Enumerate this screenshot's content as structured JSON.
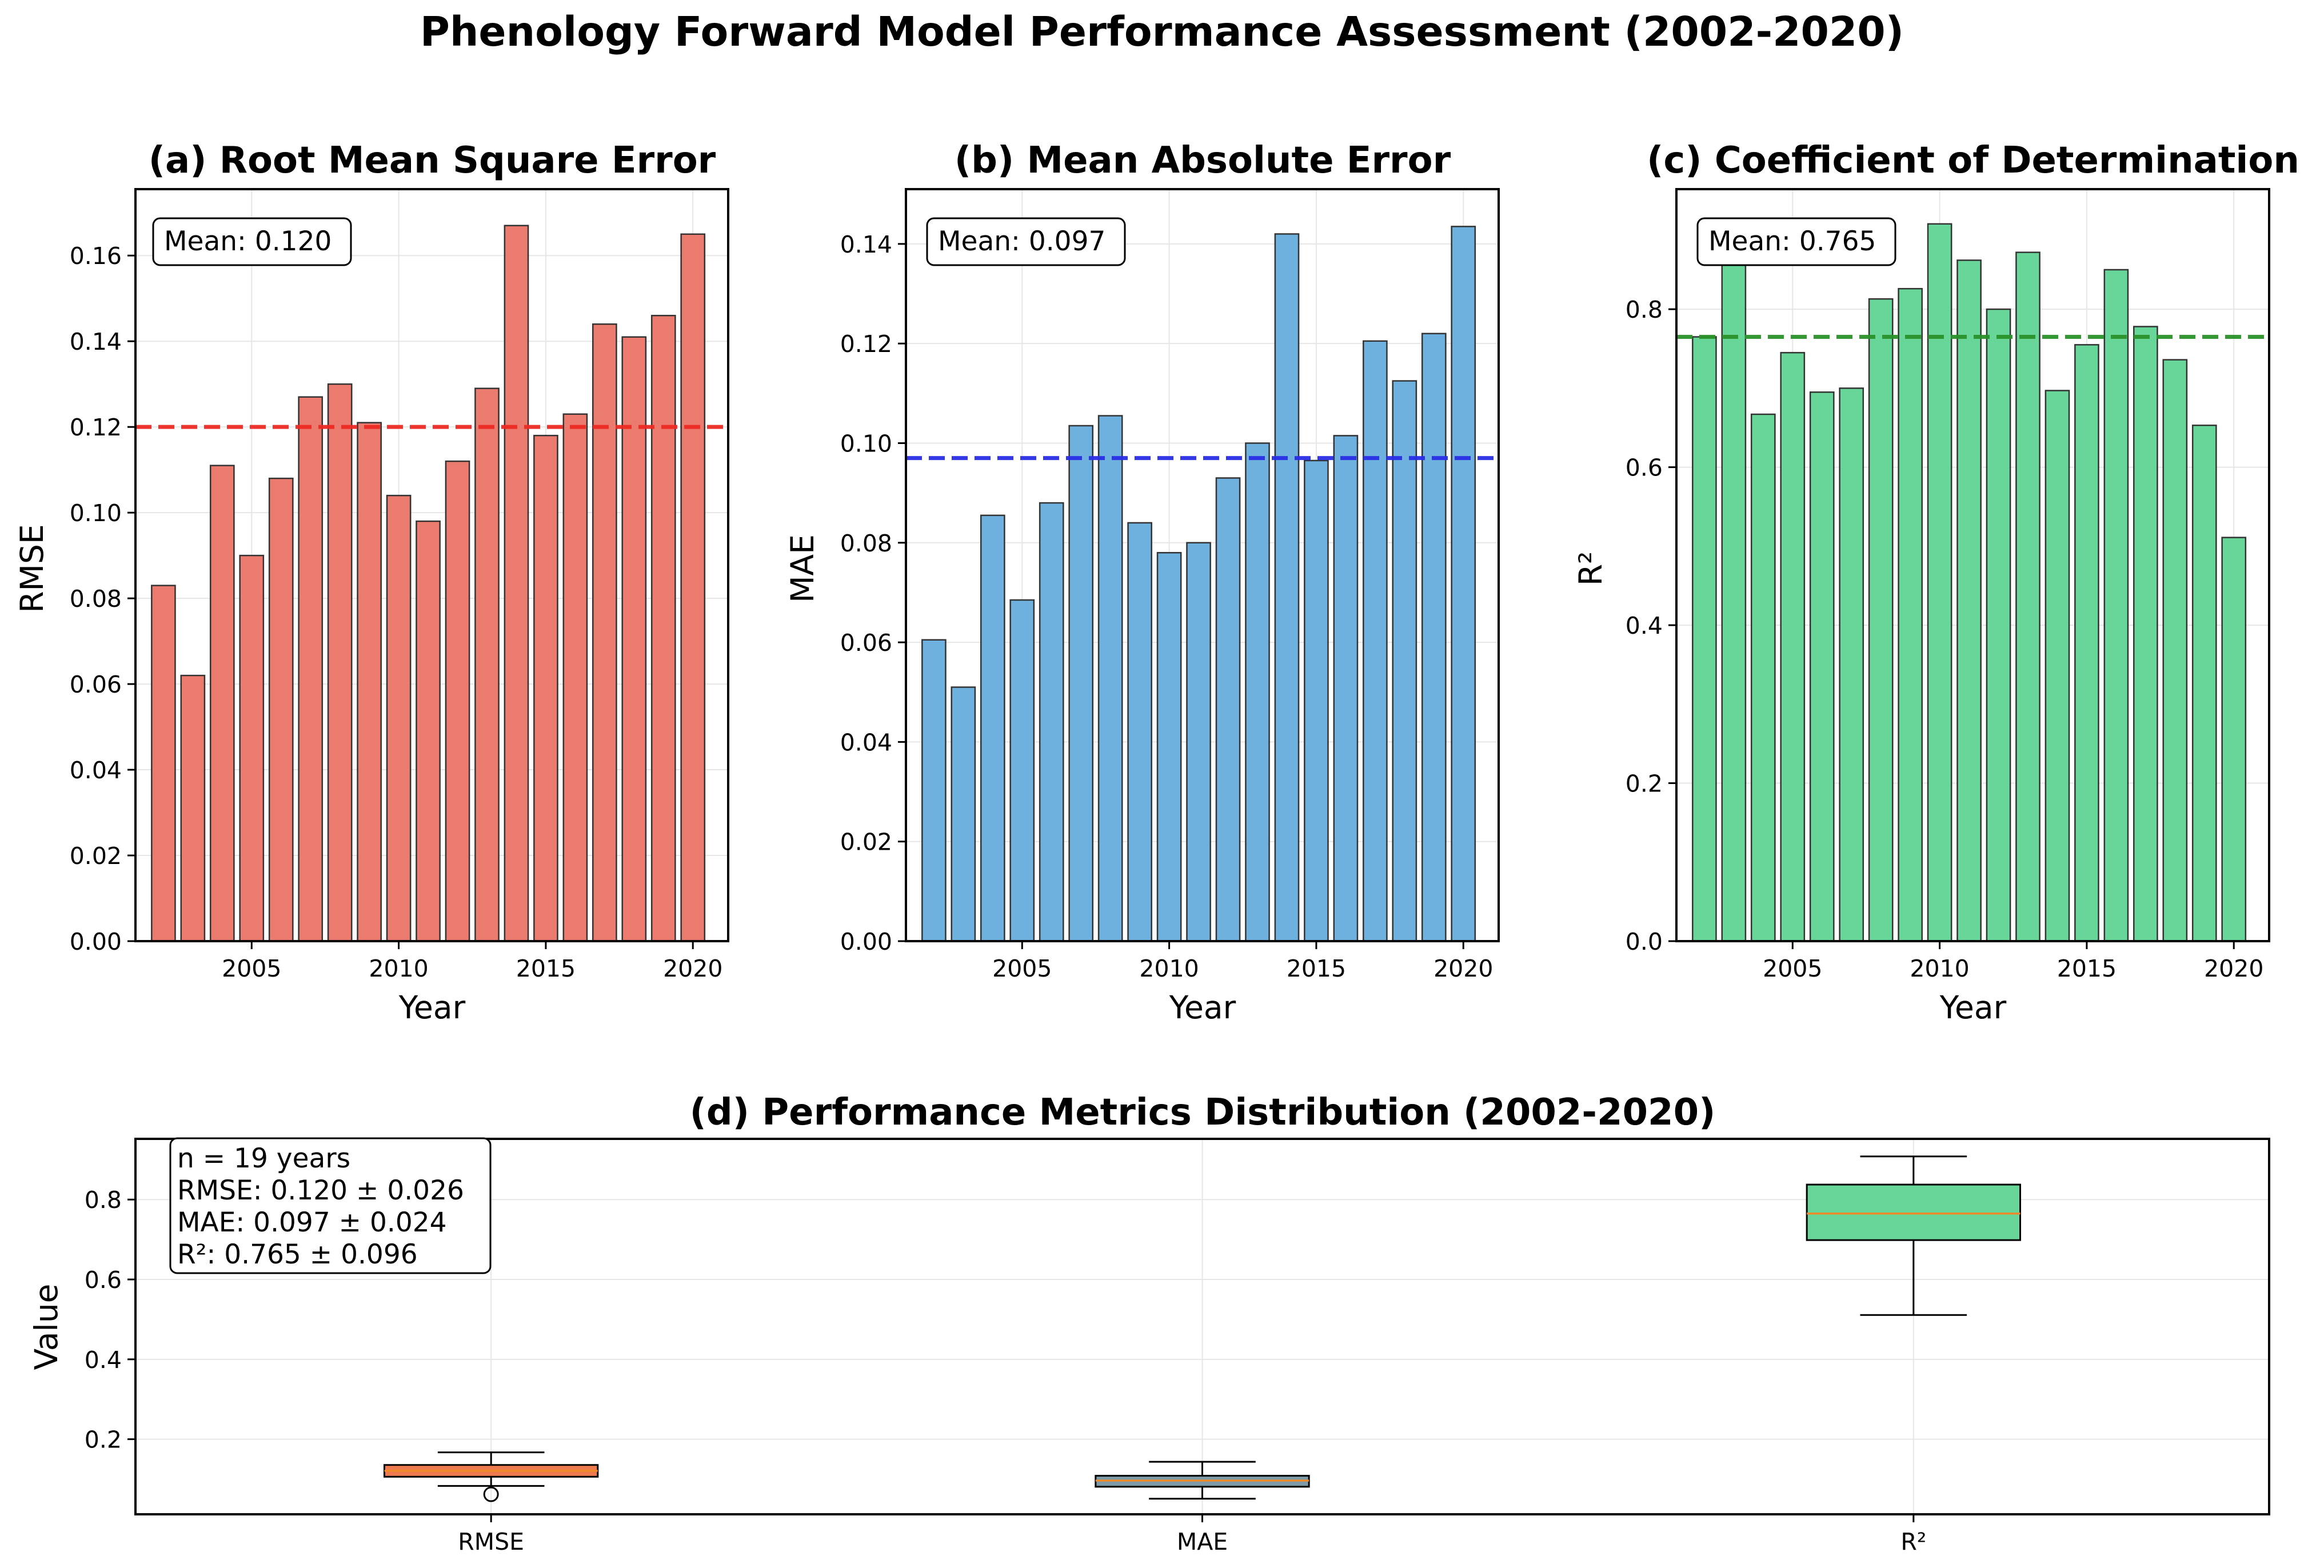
{
  "figure_title": "Phenology Forward Model Performance Assessment (2002-2020)",
  "colors": {
    "rmse_bar": "#ec7b6f",
    "mae_bar": "#6eb1df",
    "r2_bar": "#69d699",
    "rmse_mean_line": "#ee2a24",
    "mae_mean_line": "#2a2ee6",
    "r2_mean_line": "#2a922a",
    "rmse_box": "#ee7a50",
    "mae_box": "#7c9aa8",
    "r2_box": "#69d699",
    "median_line": "#f08a28"
  },
  "chart_data": [
    {
      "type": "bar",
      "panel": "a",
      "title": "(a) Root Mean Square Error",
      "xlabel": "Year",
      "ylabel": "RMSE",
      "x": [
        2002,
        2003,
        2004,
        2005,
        2006,
        2007,
        2008,
        2009,
        2010,
        2011,
        2012,
        2013,
        2014,
        2015,
        2016,
        2017,
        2018,
        2019,
        2020
      ],
      "values": [
        0.083,
        0.062,
        0.111,
        0.09,
        0.108,
        0.127,
        0.13,
        0.121,
        0.104,
        0.098,
        0.112,
        0.129,
        0.167,
        0.118,
        0.123,
        0.144,
        0.141,
        0.146,
        0.165
      ],
      "mean_line": 0.12,
      "annotation": "Mean: 0.120",
      "xlim": [
        2001.05,
        2021.2
      ],
      "ylim": [
        0,
        0.1755
      ],
      "xticks": [
        2005,
        2010,
        2015,
        2020
      ],
      "xtick_labels": [
        "2005",
        "2010",
        "2015",
        "2020"
      ],
      "yticks": [
        0,
        0.02,
        0.04,
        0.06,
        0.08,
        0.1,
        0.12,
        0.14,
        0.16
      ],
      "ytick_labels": [
        "0.00",
        "0.02",
        "0.04",
        "0.06",
        "0.08",
        "0.10",
        "0.12",
        "0.14",
        "0.16"
      ],
      "grid": true
    },
    {
      "type": "bar",
      "panel": "b",
      "title": "(b) Mean Absolute Error",
      "xlabel": "Year",
      "ylabel": "MAE",
      "x": [
        2002,
        2003,
        2004,
        2005,
        2006,
        2007,
        2008,
        2009,
        2010,
        2011,
        2012,
        2013,
        2014,
        2015,
        2016,
        2017,
        2018,
        2019,
        2020
      ],
      "values": [
        0.0605,
        0.051,
        0.0855,
        0.0685,
        0.088,
        0.1035,
        0.1055,
        0.084,
        0.078,
        0.08,
        0.093,
        0.1,
        0.142,
        0.0965,
        0.1015,
        0.1205,
        0.1125,
        0.122,
        0.1435
      ],
      "mean_line": 0.097,
      "annotation": "Mean: 0.097",
      "xlim": [
        2001.05,
        2021.2
      ],
      "ylim": [
        0,
        0.151
      ],
      "xticks": [
        2005,
        2010,
        2015,
        2020
      ],
      "xtick_labels": [
        "2005",
        "2010",
        "2015",
        "2020"
      ],
      "yticks": [
        0,
        0.02,
        0.04,
        0.06,
        0.08,
        0.1,
        0.12,
        0.14
      ],
      "ytick_labels": [
        "0.00",
        "0.02",
        "0.04",
        "0.06",
        "0.08",
        "0.10",
        "0.12",
        "0.14"
      ],
      "grid": true
    },
    {
      "type": "bar",
      "panel": "c",
      "title": "(c) Coefficient of Determination",
      "xlabel": "Year",
      "ylabel": "R²",
      "x": [
        2002,
        2003,
        2004,
        2005,
        2006,
        2007,
        2008,
        2009,
        2010,
        2011,
        2012,
        2013,
        2014,
        2015,
        2016,
        2017,
        2018,
        2019,
        2020
      ],
      "values": [
        0.765,
        0.9,
        0.667,
        0.745,
        0.695,
        0.7,
        0.813,
        0.826,
        0.908,
        0.862,
        0.8,
        0.872,
        0.697,
        0.755,
        0.85,
        0.778,
        0.736,
        0.653,
        0.511
      ],
      "mean_line": 0.765,
      "annotation": "Mean: 0.765",
      "xlim": [
        2001.05,
        2021.2
      ],
      "ylim": [
        0,
        0.952
      ],
      "xticks": [
        2005,
        2010,
        2015,
        2020
      ],
      "xtick_labels": [
        "2005",
        "2010",
        "2015",
        "2020"
      ],
      "yticks": [
        0,
        0.2,
        0.4,
        0.6,
        0.8
      ],
      "ytick_labels": [
        "0.0",
        "0.2",
        "0.4",
        "0.6",
        "0.8"
      ],
      "grid": true
    },
    {
      "type": "box",
      "panel": "d",
      "title": "(d) Performance Metrics Distribution (2002-2020)",
      "xlabel": "",
      "ylabel": "Value",
      "categories": [
        "RMSE",
        "MAE",
        "R²"
      ],
      "boxes": [
        {
          "name": "RMSE",
          "whisker_low": 0.083,
          "q1": 0.106,
          "median": 0.121,
          "q3": 0.1355,
          "whisker_high": 0.167,
          "fliers": [
            0.062
          ]
        },
        {
          "name": "MAE",
          "whisker_low": 0.051,
          "q1": 0.081,
          "median": 0.0965,
          "q3": 0.1085,
          "whisker_high": 0.1435,
          "fliers": []
        },
        {
          "name": "R²",
          "whisker_low": 0.511,
          "q1": 0.6985,
          "median": 0.765,
          "q3": 0.8375,
          "whisker_high": 0.908,
          "fliers": []
        }
      ],
      "ylim": [
        0.012,
        0.952
      ],
      "yticks": [
        0.2,
        0.4,
        0.6,
        0.8
      ],
      "ytick_labels": [
        "0.2",
        "0.4",
        "0.6",
        "0.8"
      ],
      "stats_box": [
        "n = 19 years",
        "RMSE: 0.120 ± 0.026",
        "MAE: 0.097 ± 0.024",
        "R²: 0.765 ± 0.096"
      ],
      "grid": true
    }
  ]
}
